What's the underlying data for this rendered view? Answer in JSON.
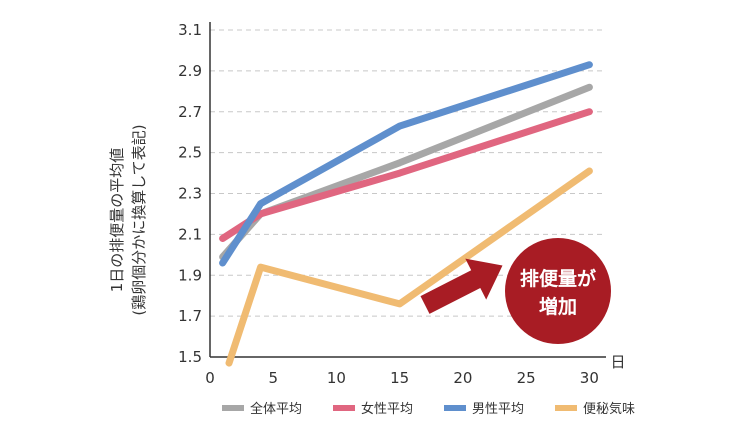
{
  "chart_data": {
    "type": "line",
    "xlabel": "日",
    "ylabel_line1": "1日の排便量の平均値",
    "ylabel_line2": "(鶏卵個分かに換算して表記)",
    "x_ticks": [
      0,
      5,
      10,
      15,
      20,
      25,
      30
    ],
    "y_ticks": [
      1.5,
      1.7,
      1.9,
      2.1,
      2.3,
      2.5,
      2.7,
      2.9,
      3.1
    ],
    "xlim": [
      0,
      31
    ],
    "ylim": [
      1.5,
      3.1
    ],
    "grid": "horizontal-dashed",
    "legend_position": "bottom",
    "series": [
      {
        "name": "全体平均",
        "color": "#a7a7a7",
        "points": [
          [
            1,
            1.99
          ],
          [
            4,
            2.2
          ],
          [
            15,
            2.45
          ],
          [
            30,
            2.82
          ]
        ]
      },
      {
        "name": "女性平均",
        "color": "#e06680",
        "points": [
          [
            1,
            2.08
          ],
          [
            4,
            2.2
          ],
          [
            15,
            2.4
          ],
          [
            30,
            2.7
          ]
        ]
      },
      {
        "name": "男性平均",
        "color": "#5f8fcd",
        "points": [
          [
            1,
            1.96
          ],
          [
            4,
            2.25
          ],
          [
            15,
            2.63
          ],
          [
            30,
            2.93
          ]
        ]
      },
      {
        "name": "便秘気味",
        "color": "#f0bb72",
        "points": [
          [
            1.5,
            1.47
          ],
          [
            4,
            1.94
          ],
          [
            15,
            1.76
          ],
          [
            30,
            2.41
          ]
        ]
      }
    ],
    "annotation": {
      "line1": "排便量が",
      "line2": "増加",
      "color": "#a81c24"
    }
  }
}
